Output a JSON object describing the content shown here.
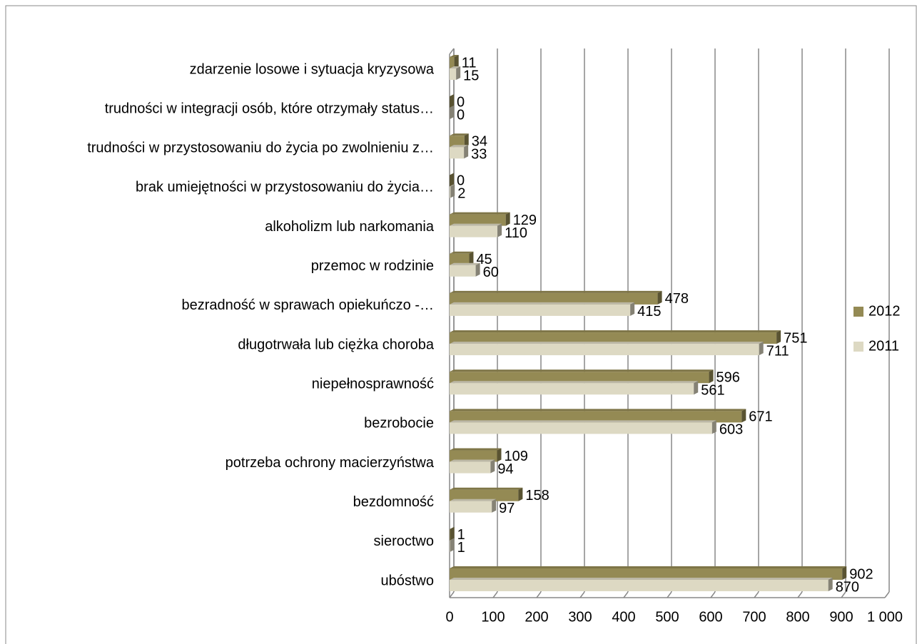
{
  "chart_data": {
    "type": "bar3d-horizontal",
    "categories": [
      "zdarzenie losowe i sytuacja kryzysowa",
      "trudności w integracji osób, które otrzymały status…",
      "trudności w przystosowaniu do życia po zwolnieniu z…",
      "brak umiejętności w przystosowaniu do życia…",
      "alkoholizm lub narkomania",
      "przemoc w rodzinie",
      "bezradność w sprawach opiekuńczo -…",
      "długotrwała lub ciężka choroba",
      "niepełnosprawność",
      "bezrobocie",
      "potrzeba ochrony macierzyństwa",
      "bezdomność",
      "sieroctwo",
      "ubóstwo"
    ],
    "series": [
      {
        "name": "2012",
        "color": "#948a54",
        "values": [
          11,
          0,
          34,
          0,
          129,
          45,
          478,
          751,
          596,
          671,
          109,
          158,
          1,
          902
        ]
      },
      {
        "name": "2011",
        "color": "#ddd9c3",
        "values": [
          15,
          0,
          33,
          2,
          110,
          60,
          415,
          711,
          561,
          603,
          94,
          97,
          1,
          870
        ]
      }
    ],
    "xlim": [
      0,
      1000
    ],
    "xticks": [
      0,
      100,
      200,
      300,
      400,
      500,
      600,
      700,
      800,
      900,
      {
        "value": 1000,
        "label": "1 000"
      }
    ],
    "grid": true,
    "legend": "right"
  }
}
